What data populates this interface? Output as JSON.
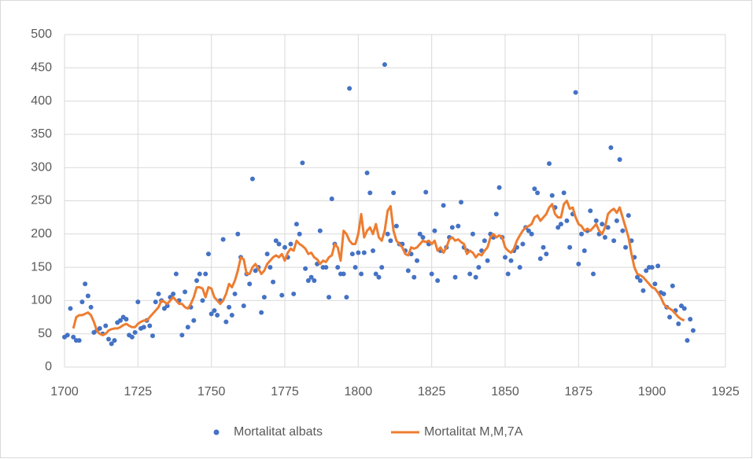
{
  "chart_data": {
    "type": "scatter-line",
    "xlim": [
      1700,
      1925
    ],
    "xticks": [
      1700,
      1725,
      1750,
      1775,
      1800,
      1825,
      1850,
      1875,
      1900,
      1925
    ],
    "ylim": [
      0,
      500
    ],
    "yticks": [
      0,
      50,
      100,
      150,
      200,
      250,
      300,
      350,
      400,
      450,
      500
    ],
    "grid": true,
    "legend": "bottom",
    "series": [
      {
        "name": "Mortalitat albats",
        "type": "scatter",
        "color": "#4472c4",
        "x": [
          1700,
          1701,
          1702,
          1703,
          1704,
          1705,
          1706,
          1707,
          1708,
          1709,
          1710,
          1711,
          1712,
          1713,
          1714,
          1715,
          1716,
          1717,
          1718,
          1719,
          1720,
          1721,
          1722,
          1723,
          1724,
          1725,
          1726,
          1727,
          1728,
          1729,
          1730,
          1731,
          1732,
          1733,
          1734,
          1735,
          1736,
          1737,
          1738,
          1739,
          1740,
          1741,
          1742,
          1743,
          1744,
          1745,
          1746,
          1747,
          1748,
          1749,
          1750,
          1751,
          1752,
          1753,
          1754,
          1755,
          1756,
          1757,
          1758,
          1759,
          1760,
          1761,
          1762,
          1763,
          1764,
          1765,
          1766,
          1767,
          1768,
          1769,
          1770,
          1771,
          1772,
          1773,
          1774,
          1775,
          1776,
          1777,
          1778,
          1779,
          1780,
          1781,
          1782,
          1783,
          1784,
          1785,
          1786,
          1787,
          1788,
          1789,
          1790,
          1791,
          1792,
          1793,
          1794,
          1795,
          1796,
          1797,
          1798,
          1799,
          1800,
          1801,
          1802,
          1803,
          1804,
          1805,
          1806,
          1807,
          1808,
          1809,
          1810,
          1811,
          1812,
          1813,
          1814,
          1815,
          1816,
          1817,
          1818,
          1819,
          1820,
          1821,
          1822,
          1823,
          1824,
          1825,
          1826,
          1827,
          1828,
          1829,
          1830,
          1831,
          1832,
          1833,
          1834,
          1835,
          1836,
          1837,
          1838,
          1839,
          1840,
          1841,
          1842,
          1843,
          1844,
          1845,
          1846,
          1847,
          1848,
          1849,
          1850,
          1851,
          1852,
          1853,
          1854,
          1855,
          1856,
          1857,
          1858,
          1859,
          1860,
          1861,
          1862,
          1863,
          1864,
          1865,
          1866,
          1867,
          1868,
          1869,
          1870,
          1871,
          1872,
          1873,
          1874,
          1875,
          1876,
          1877,
          1878,
          1879,
          1880,
          1881,
          1882,
          1883,
          1884,
          1885,
          1886,
          1887,
          1888,
          1889,
          1890,
          1891,
          1892,
          1893,
          1894,
          1895,
          1896,
          1897,
          1898,
          1899,
          1900,
          1901,
          1902,
          1903,
          1904,
          1905,
          1906,
          1907,
          1908,
          1909,
          1910,
          1911,
          1912,
          1913,
          1914
        ],
        "values": [
          45,
          48,
          88,
          45,
          40,
          40,
          98,
          125,
          107,
          90,
          52,
          55,
          58,
          50,
          62,
          42,
          35,
          40,
          67,
          70,
          75,
          72,
          48,
          45,
          52,
          98,
          58,
          60,
          70,
          62,
          47,
          98,
          110,
          100,
          88,
          92,
          105,
          110,
          140,
          100,
          48,
          113,
          60,
          90,
          70,
          130,
          140,
          100,
          140,
          170,
          80,
          85,
          78,
          100,
          192,
          68,
          90,
          78,
          110,
          200,
          165,
          92,
          140,
          125,
          283,
          145,
          150,
          82,
          105,
          170,
          150,
          128,
          190,
          185,
          108,
          180,
          165,
          185,
          110,
          215,
          200,
          307,
          148,
          130,
          135,
          130,
          155,
          205,
          150,
          150,
          105,
          253,
          185,
          150,
          140,
          140,
          105,
          419,
          170,
          150,
          172,
          140,
          172,
          292,
          262,
          175,
          140,
          135,
          150,
          455,
          200,
          190,
          262,
          212,
          185,
          185,
          175,
          145,
          170,
          135,
          160,
          200,
          195,
          263,
          185,
          140,
          205,
          130,
          175,
          243,
          180,
          195,
          210,
          135,
          212,
          248,
          180,
          175,
          140,
          200,
          135,
          150,
          175,
          190,
          160,
          200,
          195,
          230,
          270,
          195,
          165,
          140,
          160,
          175,
          180,
          150,
          185,
          210,
          205,
          200,
          268,
          262,
          163,
          180,
          170,
          306,
          258,
          240,
          210,
          215,
          262,
          220,
          180,
          230,
          413,
          155,
          200,
          175,
          205,
          235,
          140,
          220,
          200,
          215,
          195,
          210,
          330,
          190,
          220,
          312,
          205,
          180,
          228,
          190,
          165,
          135,
          130,
          115,
          145,
          150,
          150,
          125,
          152,
          112,
          110,
          90,
          75,
          122,
          85,
          65,
          92,
          88,
          40,
          72,
          55
        ]
      },
      {
        "name": "Mortalitat M,M,7A",
        "type": "line",
        "color": "#ed7d31",
        "x": [
          1703,
          1704,
          1705,
          1706,
          1707,
          1708,
          1709,
          1710,
          1711,
          1712,
          1713,
          1714,
          1715,
          1716,
          1717,
          1718,
          1719,
          1720,
          1721,
          1722,
          1723,
          1724,
          1725,
          1726,
          1727,
          1728,
          1729,
          1730,
          1731,
          1732,
          1733,
          1734,
          1735,
          1736,
          1737,
          1738,
          1739,
          1740,
          1741,
          1742,
          1743,
          1744,
          1745,
          1746,
          1747,
          1748,
          1749,
          1750,
          1751,
          1752,
          1753,
          1754,
          1755,
          1756,
          1757,
          1758,
          1759,
          1760,
          1761,
          1762,
          1763,
          1764,
          1765,
          1766,
          1767,
          1768,
          1769,
          1770,
          1771,
          1772,
          1773,
          1774,
          1775,
          1776,
          1777,
          1778,
          1779,
          1780,
          1781,
          1782,
          1783,
          1784,
          1785,
          1786,
          1787,
          1788,
          1789,
          1790,
          1791,
          1792,
          1793,
          1794,
          1795,
          1796,
          1797,
          1798,
          1799,
          1800,
          1801,
          1802,
          1803,
          1804,
          1805,
          1806,
          1807,
          1808,
          1809,
          1810,
          1811,
          1812,
          1813,
          1814,
          1815,
          1816,
          1817,
          1818,
          1819,
          1820,
          1821,
          1822,
          1823,
          1824,
          1825,
          1826,
          1827,
          1828,
          1829,
          1830,
          1831,
          1832,
          1833,
          1834,
          1835,
          1836,
          1837,
          1838,
          1839,
          1840,
          1841,
          1842,
          1843,
          1844,
          1845,
          1846,
          1847,
          1848,
          1849,
          1850,
          1851,
          1852,
          1853,
          1854,
          1855,
          1856,
          1857,
          1858,
          1859,
          1860,
          1861,
          1862,
          1863,
          1864,
          1865,
          1866,
          1867,
          1868,
          1869,
          1870,
          1871,
          1872,
          1873,
          1874,
          1875,
          1876,
          1877,
          1878,
          1879,
          1880,
          1881,
          1882,
          1883,
          1884,
          1885,
          1886,
          1887,
          1888,
          1889,
          1890,
          1891,
          1892,
          1893,
          1894,
          1895,
          1896,
          1897,
          1898,
          1899,
          1900,
          1901,
          1902,
          1903,
          1904,
          1905,
          1906,
          1907,
          1908,
          1909,
          1910,
          1911
        ],
        "values": [
          58,
          75,
          78,
          78,
          80,
          82,
          78,
          68,
          55,
          50,
          48,
          50,
          55,
          57,
          58,
          58,
          60,
          63,
          65,
          62,
          60,
          60,
          65,
          68,
          70,
          70,
          75,
          80,
          85,
          90,
          100,
          98,
          95,
          100,
          105,
          100,
          95,
          95,
          90,
          88,
          95,
          105,
          120,
          120,
          118,
          105,
          120,
          118,
          105,
          100,
          95,
          100,
          110,
          125,
          120,
          130,
          145,
          165,
          162,
          140,
          140,
          150,
          155,
          148,
          140,
          145,
          155,
          160,
          165,
          168,
          165,
          170,
          160,
          172,
          178,
          175,
          190,
          185,
          182,
          178,
          170,
          172,
          165,
          162,
          155,
          160,
          158,
          165,
          168,
          185,
          180,
          160,
          205,
          200,
          190,
          185,
          185,
          200,
          230,
          195,
          205,
          210,
          200,
          215,
          195,
          190,
          205,
          235,
          242,
          205,
          190,
          185,
          180,
          170,
          168,
          180,
          178,
          180,
          185,
          190,
          188,
          190,
          185,
          190,
          175,
          180,
          172,
          180,
          192,
          195,
          190,
          192,
          188,
          185,
          170,
          175,
          172,
          165,
          170,
          168,
          175,
          180,
          195,
          200,
          195,
          198,
          195,
          180,
          175,
          172,
          178,
          190,
          198,
          205,
          210,
          212,
          215,
          225,
          228,
          220,
          225,
          230,
          240,
          245,
          230,
          225,
          225,
          245,
          250,
          238,
          240,
          225,
          215,
          212,
          205,
          208,
          205,
          210,
          215,
          205,
          200,
          210,
          230,
          235,
          238,
          232,
          240,
          225,
          210,
          195,
          170,
          150,
          140,
          138,
          135,
          130,
          125,
          120,
          118,
          112,
          105,
          95,
          90,
          88,
          85,
          80,
          75,
          72,
          70
        ]
      }
    ]
  }
}
